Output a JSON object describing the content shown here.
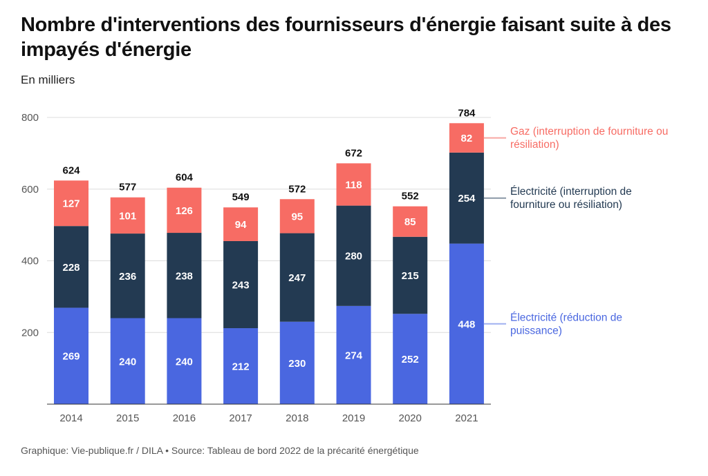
{
  "title": "Nombre d'interventions des fournisseurs d'énergie faisant suite à des impayés d'énergie",
  "subtitle": "En milliers",
  "footer": "Graphique: Vie-publique.fr / DILA • Source: Tableau de bord 2022 de la précarité énergétique",
  "chart_data": {
    "type": "bar",
    "stacked": true,
    "categories": [
      "2014",
      "2015",
      "2016",
      "2017",
      "2018",
      "2019",
      "2020",
      "2021"
    ],
    "series": [
      {
        "name": "Électricité (réduction de puissance)",
        "color": "#4a67e0",
        "values": [
          269,
          240,
          240,
          212,
          230,
          274,
          252,
          448
        ]
      },
      {
        "name": "Électricité (interruption de fourniture ou résiliation)",
        "color": "#233a52",
        "values": [
          228,
          236,
          238,
          243,
          247,
          280,
          215,
          254
        ]
      },
      {
        "name": "Gaz (interruption de fourniture ou résiliation)",
        "color": "#f76c64",
        "values": [
          127,
          101,
          126,
          94,
          95,
          118,
          85,
          82
        ]
      }
    ],
    "totals": [
      624,
      577,
      604,
      549,
      572,
      672,
      552,
      784
    ],
    "yticks": [
      200,
      400,
      600,
      800
    ],
    "ylim": [
      0,
      800
    ],
    "grid": true,
    "legend": "right, inline labels",
    "legend_lines": [
      [
        "Gaz (interruption de fourniture ou",
        "résiliation)"
      ],
      [
        "Électricité (interruption de",
        "fourniture ou résiliation)"
      ],
      [
        "Électricité (réduction de",
        "puissance)"
      ]
    ]
  }
}
